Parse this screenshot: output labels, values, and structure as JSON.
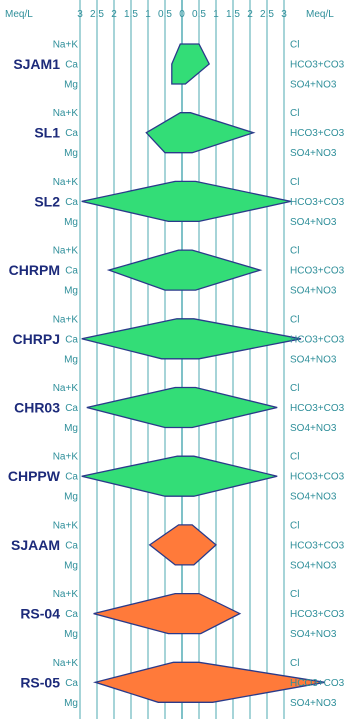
{
  "chart_data": {
    "type": "stiff",
    "unit_left": "Meq/L",
    "unit_right": "Meq/L",
    "x_ticks_left": [
      "3",
      "2.5",
      "2",
      "1.5",
      "1",
      "0.5",
      "0"
    ],
    "x_ticks_right": [
      "0.5",
      "1",
      "1.5",
      "2",
      "2.5",
      "3"
    ],
    "xlim": [
      -3,
      3
    ],
    "left_ions": [
      "Na+K",
      "Ca",
      "Mg"
    ],
    "right_ions": [
      "Cl",
      "HCO3+CO3",
      "SO4+NO3"
    ],
    "colors": {
      "green": "#33dd77",
      "orange": "#ff7a3a",
      "outline": "#2a3a8a",
      "grid": "#3aa0aa"
    },
    "samples": [
      {
        "name": "SJAM1",
        "color": "green",
        "cations": [
          0.05,
          0.3,
          0.3
        ],
        "anions": [
          0.5,
          0.8,
          0.1
        ]
      },
      {
        "name": "SL1",
        "color": "green",
        "cations": [
          0.05,
          1.05,
          0.5
        ],
        "anions": [
          0.25,
          2.1,
          0.3
        ]
      },
      {
        "name": "SL2",
        "color": "green",
        "cations": [
          0.2,
          2.95,
          0.4
        ],
        "anions": [
          0.4,
          3.2,
          0.5
        ]
      },
      {
        "name": "CHRPM",
        "color": "green",
        "cations": [
          0.1,
          2.15,
          0.5
        ],
        "anions": [
          0.3,
          2.3,
          0.4
        ]
      },
      {
        "name": "CHRPJ",
        "color": "green",
        "cations": [
          0.15,
          2.95,
          0.6
        ],
        "anions": [
          0.35,
          3.5,
          0.5
        ]
      },
      {
        "name": "CHR03",
        "color": "green",
        "cations": [
          0.2,
          2.8,
          0.5
        ],
        "anions": [
          0.4,
          2.8,
          0.3
        ]
      },
      {
        "name": "CHPPW",
        "color": "green",
        "cations": [
          0.15,
          2.95,
          0.5
        ],
        "anions": [
          0.35,
          2.8,
          0.35
        ]
      },
      {
        "name": "SJAAM",
        "color": "orange",
        "cations": [
          0.1,
          0.95,
          0.2
        ],
        "anions": [
          0.3,
          1.0,
          0.35
        ]
      },
      {
        "name": "RS-04",
        "color": "orange",
        "cations": [
          0.2,
          2.6,
          0.4
        ],
        "anions": [
          0.5,
          1.7,
          0.55
        ]
      },
      {
        "name": "RS-05",
        "color": "orange",
        "cations": [
          0.25,
          2.55,
          0.7
        ],
        "anions": [
          0.5,
          4.2,
          0.9
        ]
      }
    ]
  }
}
